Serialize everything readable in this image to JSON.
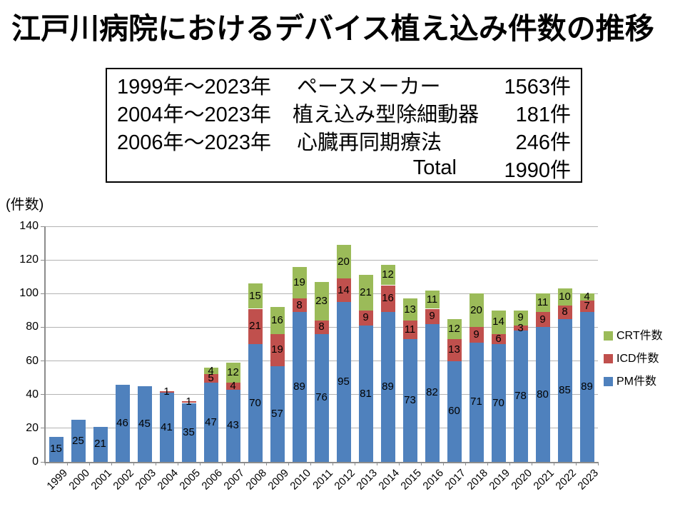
{
  "title": "江戸川病院におけるデバイス植え込み件数の推移",
  "colors": {
    "title_underline": "#C00000",
    "pm": "#4F81BD",
    "icd": "#C0504D",
    "crt": "#9BBB59"
  },
  "summary_box": {
    "rows": [
      {
        "period": "1999年～2023年",
        "name": "ペースメーカー",
        "count": "1563件"
      },
      {
        "period": "2004年～2023年",
        "name": "植え込み型除細動器",
        "count": "181件"
      },
      {
        "period": "2006年～2023年",
        "name": "心臓再同期療法",
        "count": "246件"
      },
      {
        "period": "",
        "name": "Total",
        "count": "1990件"
      }
    ]
  },
  "chart_data": {
    "type": "bar",
    "stacked": true,
    "axis_unit_label": "(件数)",
    "categories": [
      1999,
      2000,
      2001,
      2002,
      2003,
      2004,
      2005,
      2006,
      2007,
      2008,
      2009,
      2010,
      2011,
      2012,
      2013,
      2014,
      2015,
      2016,
      2017,
      2018,
      2019,
      2020,
      2021,
      2022,
      2023
    ],
    "series": [
      {
        "name": "PM件数",
        "color": "#4F81BD",
        "values": [
          15,
          25,
          21,
          46,
          45,
          41,
          35,
          47,
          43,
          70,
          57,
          89,
          76,
          95,
          81,
          89,
          73,
          82,
          60,
          71,
          70,
          78,
          80,
          85,
          89
        ]
      },
      {
        "name": "ICD件数",
        "color": "#C0504D",
        "values": [
          0,
          0,
          0,
          0,
          0,
          1,
          1,
          5,
          4,
          21,
          19,
          8,
          8,
          14,
          9,
          16,
          11,
          9,
          13,
          9,
          6,
          3,
          9,
          8,
          7
        ]
      },
      {
        "name": "CRT件数",
        "color": "#9BBB59",
        "values": [
          0,
          0,
          0,
          0,
          0,
          0,
          0,
          4,
          12,
          15,
          16,
          19,
          23,
          20,
          21,
          12,
          13,
          11,
          12,
          20,
          14,
          9,
          11,
          10,
          4
        ]
      }
    ],
    "ylim": [
      0,
      140
    ],
    "ytick_interval": 20,
    "grid": true,
    "legend_position": "right",
    "data_labels": "shown for every non-zero segment"
  }
}
